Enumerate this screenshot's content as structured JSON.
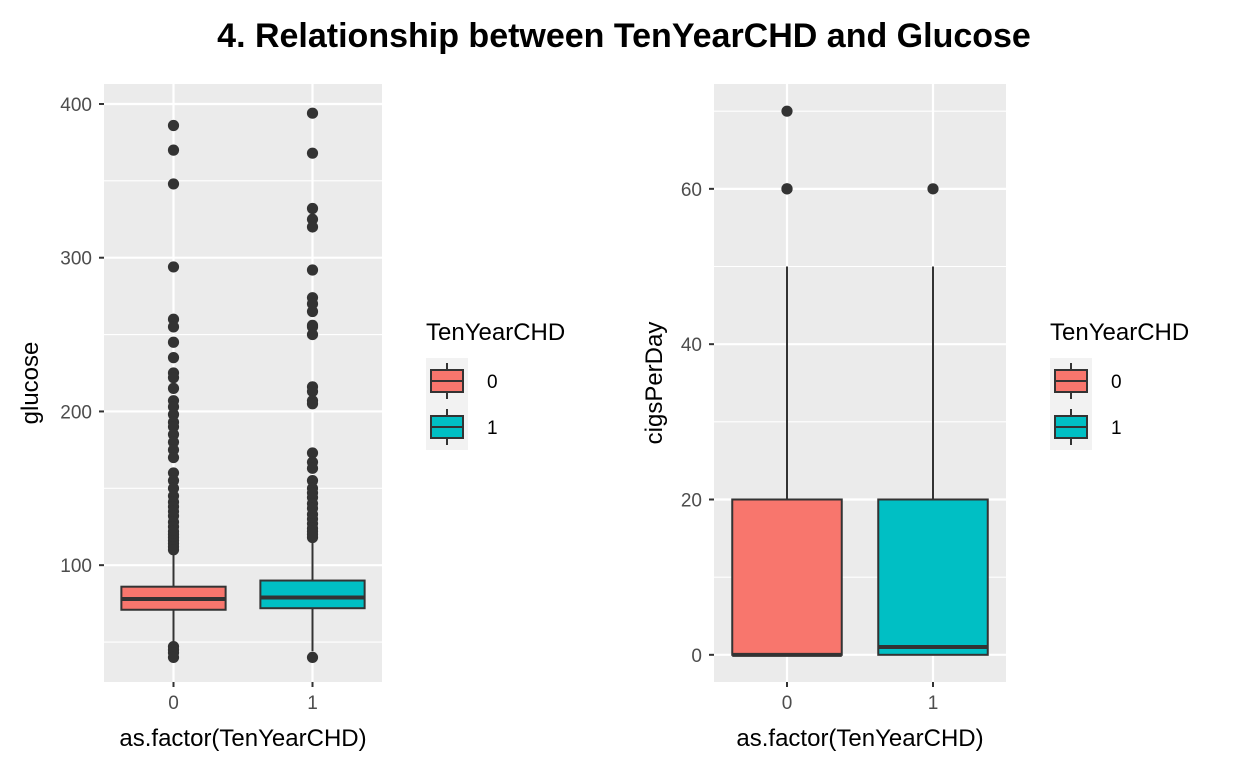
{
  "title": "4. Relationship between TenYearCHD and Glucose",
  "colors": {
    "group_0": "#F8766D",
    "group_1": "#00BFC4",
    "panel_bg": "#EBEBEB",
    "grid": "#FFFFFF",
    "box_line": "#333333",
    "tick_text": "#4D4D4D"
  },
  "chart_data": [
    {
      "type": "boxplot",
      "xlabel": "as.factor(TenYearCHD)",
      "ylabel": "glucose",
      "categories": [
        "0",
        "1"
      ],
      "ylim": [
        24,
        413
      ],
      "yticks": [
        100,
        200,
        300,
        400
      ],
      "grid": true,
      "legend": {
        "title": "TenYearCHD",
        "position": "right",
        "entries": [
          "0",
          "1"
        ]
      },
      "boxes": [
        {
          "category": "0",
          "whisker_low": 48,
          "q1": 71,
          "median": 78,
          "q3": 86,
          "whisker_high": 108,
          "outliers": [
            386,
            370,
            348,
            294,
            260,
            255,
            245,
            235,
            225,
            222,
            215,
            207,
            203,
            198,
            193,
            190,
            185,
            180,
            175,
            170,
            160,
            155,
            150,
            145,
            141,
            138,
            135,
            132,
            128,
            125,
            122,
            120,
            118,
            116,
            114,
            112,
            110,
            47,
            45,
            43,
            40
          ]
        },
        {
          "category": "1",
          "whisker_low": 44,
          "q1": 72,
          "median": 79,
          "q3": 90,
          "whisker_high": 115,
          "outliers": [
            394,
            368,
            332,
            325,
            320,
            292,
            274,
            270,
            265,
            256,
            255,
            250,
            216,
            213,
            207,
            205,
            173,
            167,
            163,
            155,
            150,
            147,
            144,
            140,
            137,
            133,
            130,
            127,
            124,
            122,
            120,
            118,
            40
          ]
        }
      ]
    },
    {
      "type": "boxplot",
      "xlabel": "as.factor(TenYearCHD)",
      "ylabel": "cigsPerDay",
      "categories": [
        "0",
        "1"
      ],
      "ylim": [
        -3.5,
        73.5
      ],
      "yticks": [
        0,
        20,
        40,
        60
      ],
      "grid": true,
      "legend": {
        "title": "TenYearCHD",
        "position": "right",
        "entries": [
          "0",
          "1"
        ]
      },
      "boxes": [
        {
          "category": "0",
          "whisker_low": 0,
          "q1": 0,
          "median": 0,
          "q3": 20,
          "whisker_high": 50,
          "outliers": [
            70,
            60,
            60
          ]
        },
        {
          "category": "1",
          "whisker_low": 0,
          "q1": 0,
          "median": 1,
          "q3": 20,
          "whisker_high": 50,
          "outliers": [
            60
          ]
        }
      ]
    }
  ]
}
